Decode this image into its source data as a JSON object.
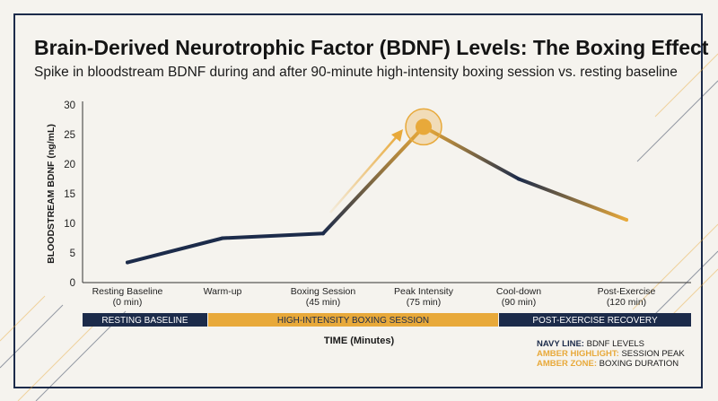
{
  "title": "Brain-Derived Neurotrophic Factor (BDNF) Levels: The Boxing Effect",
  "subtitle": "Spike in bloodstream BDNF during and after 90-minute high-intensity boxing session vs. resting baseline",
  "colors": {
    "navy": "#1c2b4a",
    "amber": "#e8a93a",
    "background": "#f5f3ee"
  },
  "chart_data": {
    "type": "line",
    "title": "Brain-Derived Neurotrophic Factor (BDNF) Levels: The Boxing Effect",
    "xlabel": "TIME (Minutes)",
    "ylabel": "BLOODSTREAM BDNF (ng/mL)",
    "ylim": [
      0,
      30
    ],
    "yticks": [
      "0",
      "5",
      "10",
      "15",
      "20",
      "25",
      "30"
    ],
    "categories": [
      [
        "Resting Baseline",
        "(0 min)"
      ],
      [
        "Warm-up"
      ],
      [
        "Boxing Session",
        "(45 min)"
      ],
      [
        "Peak Intensity",
        "(75 min)"
      ],
      [
        "Cool-down",
        "(90 min)"
      ],
      [
        "Post-Exercise",
        "(120 min)"
      ]
    ],
    "series": [
      {
        "values": [
          3.4,
          7.5,
          8.3,
          26.3,
          17.5,
          10.6
        ]
      }
    ],
    "peak_index": 3,
    "grid": false,
    "phases": [
      {
        "label": "RESTING BASELINE",
        "from": 0,
        "to": 1,
        "style": "navy"
      },
      {
        "label": "HIGH-INTENSITY BOXING SESSION",
        "from": 1,
        "to": 4,
        "style": "amber"
      },
      {
        "label": "POST-EXERCISE RECOVERY",
        "from": 4,
        "to": 6,
        "style": "navy"
      }
    ]
  },
  "legend": [
    {
      "key": "NAVY LINE:",
      "value": "BDNF LEVELS",
      "color": "#1c2b4a"
    },
    {
      "key": "AMBER HIGHLIGHT:",
      "value": "SESSION PEAK",
      "color": "#e8a93a"
    },
    {
      "key": "AMBER ZONE:",
      "value": "BOXING DURATION",
      "color": "#e8a93a"
    }
  ]
}
